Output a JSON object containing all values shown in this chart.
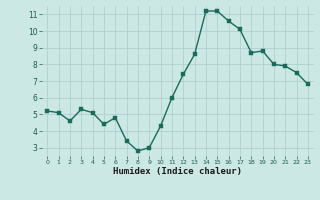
{
  "x": [
    0,
    1,
    2,
    3,
    4,
    5,
    6,
    7,
    8,
    9,
    10,
    11,
    12,
    13,
    14,
    15,
    16,
    17,
    18,
    19,
    20,
    21,
    22,
    23
  ],
  "y": [
    5.2,
    5.1,
    4.6,
    5.3,
    5.1,
    4.4,
    4.8,
    3.4,
    2.8,
    3.0,
    4.3,
    6.0,
    7.4,
    8.6,
    11.2,
    11.2,
    10.6,
    10.1,
    8.7,
    8.8,
    8.0,
    7.9,
    7.5,
    6.8
  ],
  "line_color": "#1a6b5a",
  "marker_color": "#1a6b5a",
  "bg_color": "#cce8e4",
  "grid_color": "#aaccca",
  "xlabel": "Humidex (Indice chaleur)",
  "xlim": [
    -0.5,
    23.5
  ],
  "ylim": [
    2.5,
    11.5
  ],
  "yticks": [
    3,
    4,
    5,
    6,
    7,
    8,
    9,
    10,
    11
  ],
  "xticks": [
    0,
    1,
    2,
    3,
    4,
    5,
    6,
    7,
    8,
    9,
    10,
    11,
    12,
    13,
    14,
    15,
    16,
    17,
    18,
    19,
    20,
    21,
    22,
    23
  ],
  "marker_size": 2.5,
  "line_width": 1.0
}
